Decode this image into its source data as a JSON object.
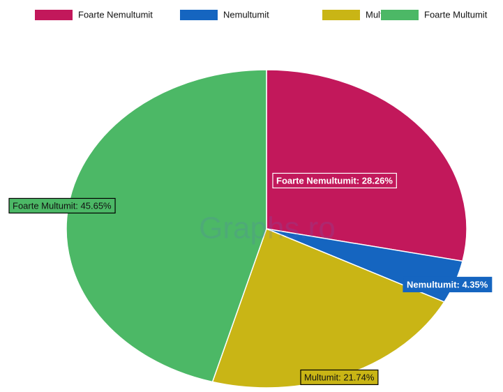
{
  "chart_data": {
    "type": "pie",
    "categories": [
      "Foarte Nemultumit",
      "Nemultumit",
      "Multumit",
      "Foarte Multumit"
    ],
    "values": [
      28.26,
      4.35,
      21.74,
      45.65
    ],
    "value_labels": [
      "Foarte Nemultumit: 28.26%",
      "Nemultumit: 4.35%",
      "Multumit: 21.74%",
      "Foarte Multumit: 45.65%"
    ],
    "colors": [
      "#c2185b",
      "#1565c0",
      "#c9b515",
      "#4cb866"
    ],
    "label_text_colors": [
      "#ffffff",
      "#ffffff",
      "#111111",
      "#111111"
    ],
    "watermark": "Graphs.ro",
    "legend": "top"
  }
}
